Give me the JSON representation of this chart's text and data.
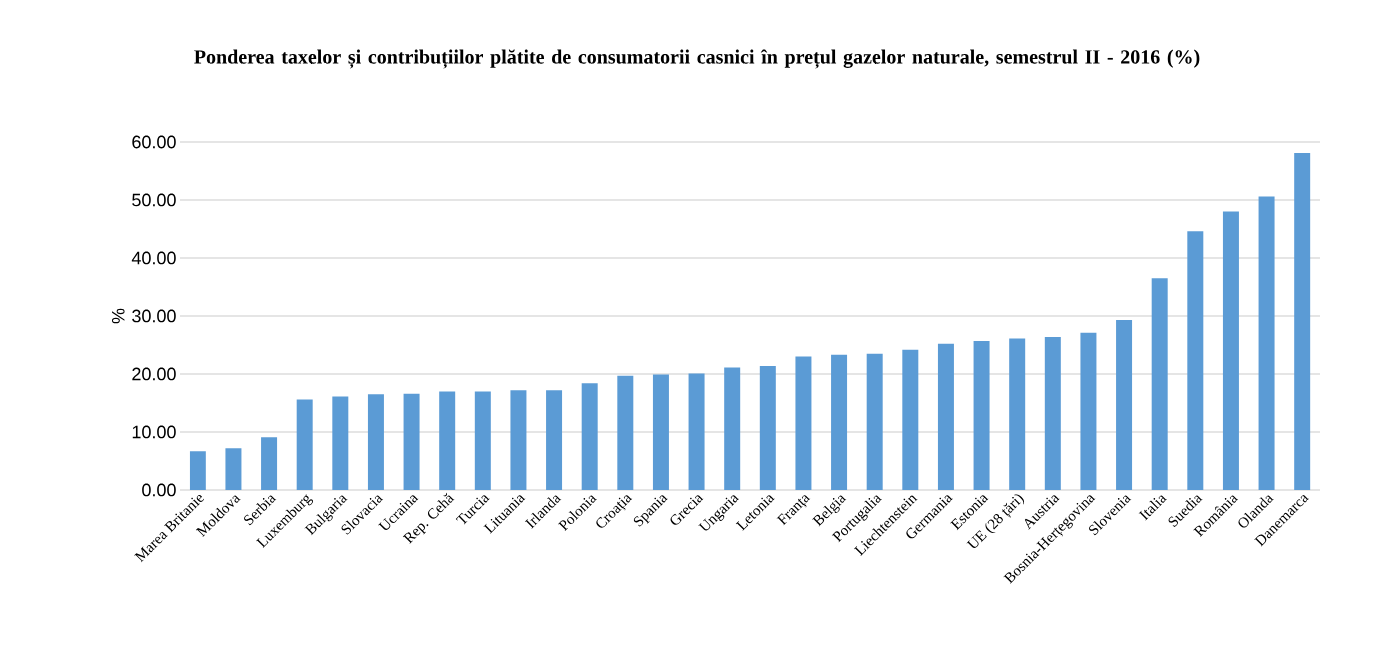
{
  "chart_data": {
    "type": "bar",
    "title": "Ponderea taxelor și contribuțiilor plătite de consumatorii casnici în prețul gazelor naturale, semestrul II - 2016 (%)",
    "ylabel": "%",
    "categories": [
      "Marea Britanie",
      "Moldova",
      "Serbia",
      "Luxemburg",
      "Bulgaria",
      "Slovacia",
      "Ucraina",
      "Rep. Cehă",
      "Turcia",
      "Lituania",
      "Irlanda",
      "Polonia",
      "Croația",
      "Spania",
      "Grecia",
      "Ungaria",
      "Letonia",
      "Franța",
      "Belgia",
      "Portugalia",
      "Liechtenstein",
      "Germania",
      "Estonia",
      "UE (28 țări)",
      "Austria",
      "Bosnia-Herțegovina",
      "Slovenia",
      "Italia",
      "Suedia",
      "România",
      "Olanda",
      "Danemarca"
    ],
    "values": [
      6.7,
      7.2,
      9.1,
      15.6,
      16.1,
      16.5,
      16.6,
      17.0,
      17.0,
      17.2,
      17.2,
      18.4,
      19.7,
      19.9,
      20.1,
      21.1,
      21.4,
      23.0,
      23.3,
      23.5,
      24.2,
      25.2,
      25.7,
      26.1,
      26.4,
      27.1,
      29.3,
      36.5,
      44.6,
      48.0,
      50.6,
      58.1
    ],
    "color": "#5b9bd5",
    "ylim": [
      0,
      60
    ],
    "yticks": [
      {
        "value": 0,
        "label": "0.00"
      },
      {
        "value": 10,
        "label": "10.00"
      },
      {
        "value": 20,
        "label": "20.00"
      },
      {
        "value": 30,
        "label": "30.00"
      },
      {
        "value": 40,
        "label": "40.00"
      },
      {
        "value": 50,
        "label": "50.00"
      },
      {
        "value": 60,
        "label": "60.00"
      }
    ],
    "grid": "y"
  }
}
